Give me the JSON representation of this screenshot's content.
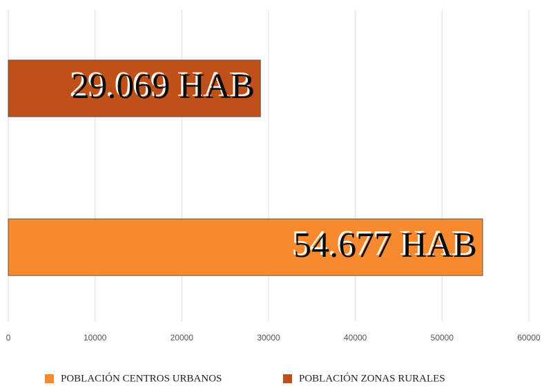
{
  "chart_data": {
    "type": "bar",
    "orientation": "horizontal",
    "series": [
      {
        "name": "POBLACIÓN CENTROS URBANOS",
        "color": "#f7892f",
        "values": [
          54677
        ],
        "value_labels": [
          "54.677 HAB"
        ]
      },
      {
        "name": "POBLACIÓN ZONAS RURALES",
        "color": "#c0501a",
        "values": [
          29069
        ],
        "value_labels": [
          "29.069 HAB"
        ]
      }
    ],
    "xlim": [
      0,
      60000
    ],
    "xticks": [
      0,
      10000,
      20000,
      30000,
      40000,
      50000,
      60000
    ],
    "grid": true
  }
}
